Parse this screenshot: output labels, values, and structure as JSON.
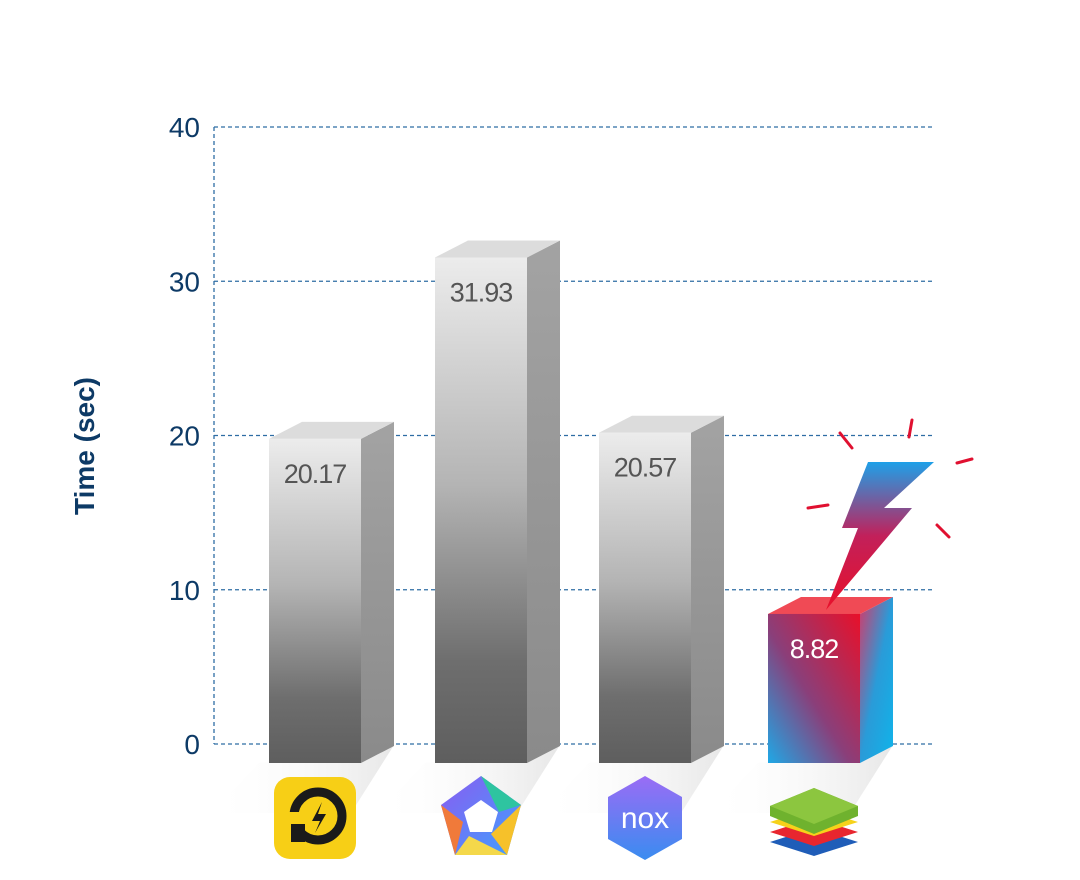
{
  "chart_data": {
    "type": "bar",
    "title": "",
    "xlabel": "",
    "ylabel": "Time (sec)",
    "ylim": [
      0,
      40
    ],
    "yticks": [
      0,
      10,
      20,
      30,
      40
    ],
    "grid": true,
    "categories": [
      "LDPlayer",
      "MEmu",
      "Nox",
      "BlueStacks"
    ],
    "values": [
      20.17,
      31.93,
      20.57,
      8.82
    ],
    "value_labels": [
      "20.17",
      "31.93",
      "20.57",
      "8.82"
    ],
    "icons": [
      "ldplayer-logo-icon",
      "memu-logo-icon",
      "nox-logo-icon",
      "bluestacks-logo-icon"
    ],
    "icon_texts": [
      "",
      "",
      "nox",
      ""
    ],
    "highlight_index": 3,
    "colors": {
      "axis_text": "#0d3a66",
      "grid": "#2e6da4",
      "bar_light": "#e6e6e6",
      "bar_dark": "#616161",
      "value_text": "#555555",
      "highlight_red": "#e8102a",
      "highlight_blue": "#0fb4ea",
      "highlight_text": "#ffffff"
    }
  }
}
